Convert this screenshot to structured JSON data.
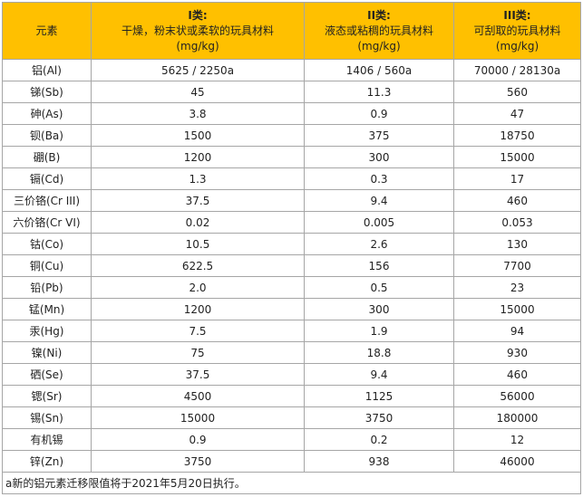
{
  "table": {
    "header": {
      "element": "元素",
      "columns": [
        {
          "title": "I类:",
          "desc": "干燥，粉末状或柔软的玩具材料",
          "unit": "(mg/kg)"
        },
        {
          "title": "II类:",
          "desc": "液态或粘稠的玩具材料",
          "unit": "(mg/kg)"
        },
        {
          "title": "III类:",
          "desc": "可刮取的玩具材料",
          "unit": "(mg/kg)"
        }
      ]
    },
    "rows": [
      [
        "铝(Al)",
        "5625 / 2250a",
        "1406 / 560a",
        "70000 / 28130a"
      ],
      [
        "锑(Sb)",
        "45",
        "11.3",
        "560"
      ],
      [
        "砷(As)",
        "3.8",
        "0.9",
        "47"
      ],
      [
        "钡(Ba)",
        "1500",
        "375",
        "18750"
      ],
      [
        "硼(B)",
        "1200",
        "300",
        "15000"
      ],
      [
        "镉(Cd)",
        "1.3",
        "0.3",
        "17"
      ],
      [
        "三价铬(Cr III)",
        "37.5",
        "9.4",
        "460"
      ],
      [
        "六价铬(Cr VI)",
        "0.02",
        "0.005",
        "0.053"
      ],
      [
        "钴(Co)",
        "10.5",
        "2.6",
        "130"
      ],
      [
        "铜(Cu)",
        "622.5",
        "156",
        "7700"
      ],
      [
        "铅(Pb)",
        "2.0",
        "0.5",
        "23"
      ],
      [
        "锰(Mn)",
        "1200",
        "300",
        "15000"
      ],
      [
        "汞(Hg)",
        "7.5",
        "1.9",
        "94"
      ],
      [
        "镍(Ni)",
        "75",
        "18.8",
        "930"
      ],
      [
        "硒(Se)",
        "37.5",
        "9.4",
        "460"
      ],
      [
        "锶(Sr)",
        "4500",
        "1125",
        "56000"
      ],
      [
        "锡(Sn)",
        "15000",
        "3750",
        "180000"
      ],
      [
        "有机锡",
        "0.9",
        "0.2",
        "12"
      ],
      [
        "锌(Zn)",
        "3750",
        "938",
        "46000"
      ]
    ],
    "footnote": "a新的铝元素迁移限值将于2021年5月20日执行。"
  }
}
